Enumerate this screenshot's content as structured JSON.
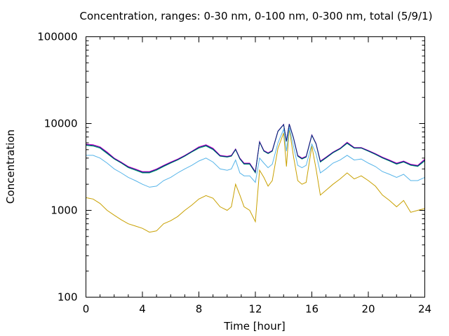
{
  "chart_data": {
    "type": "line",
    "title": "Concentration, ranges: 0-30 nm, 0-100 nm, 0-300 nm, total (5/9/1)",
    "xlabel": "Time [hour]",
    "ylabel": "Concentration",
    "xlim": [
      0,
      24
    ],
    "ylim": [
      100,
      100000
    ],
    "yscale": "log",
    "grid": false,
    "legend": "none",
    "x_ticks": [
      0,
      4,
      8,
      12,
      16,
      20,
      24
    ],
    "x_tick_labels": [
      "0",
      "4",
      "8",
      "12",
      "16",
      "20",
      "24"
    ],
    "y_ticks": [
      100,
      1000,
      10000,
      100000
    ],
    "y_tick_labels": [
      "100",
      "1000",
      "10000",
      "100000"
    ],
    "x": [
      0,
      0.5,
      1,
      1.5,
      2,
      2.5,
      3,
      3.5,
      4,
      4.5,
      5,
      5.5,
      6,
      6.5,
      7,
      7.5,
      8,
      8.5,
      9,
      9.5,
      10,
      10.3,
      10.6,
      10.9,
      11.2,
      11.6,
      12,
      12.3,
      12.6,
      12.9,
      13.2,
      13.6,
      14,
      14.2,
      14.4,
      14.7,
      15,
      15.3,
      15.6,
      16,
      16.3,
      16.6,
      17,
      17.5,
      18,
      18.5,
      19,
      19.5,
      20,
      20.5,
      21,
      21.5,
      22,
      22.5,
      23,
      23.5,
      24
    ],
    "series": [
      {
        "color": "#c8a000",
        "values": [
          1400,
          1350,
          1200,
          1000,
          880,
          780,
          700,
          660,
          620,
          560,
          580,
          700,
          760,
          850,
          1000,
          1150,
          1350,
          1480,
          1380,
          1100,
          1000,
          1100,
          2000,
          1500,
          1100,
          1000,
          740,
          2900,
          2400,
          1900,
          2200,
          5200,
          7800,
          3200,
          8800,
          4200,
          2200,
          2000,
          2100,
          5500,
          3000,
          1500,
          1700,
          2000,
          2300,
          2700,
          2300,
          2500,
          2200,
          1900,
          1500,
          1300,
          1100,
          1300,
          950,
          1000,
          1050
        ]
      },
      {
        "color": "#56b4e9",
        "values": [
          4300,
          4300,
          4000,
          3500,
          3000,
          2700,
          2400,
          2200,
          2000,
          1850,
          1900,
          2200,
          2400,
          2700,
          3000,
          3300,
          3700,
          4000,
          3600,
          3000,
          2900,
          3000,
          3800,
          2700,
          2500,
          2500,
          2100,
          4000,
          3500,
          3100,
          3400,
          6000,
          8600,
          4800,
          9000,
          5500,
          3300,
          3100,
          3300,
          5800,
          4500,
          2700,
          3000,
          3500,
          3800,
          4300,
          3800,
          3900,
          3500,
          3200,
          2800,
          2600,
          2400,
          2600,
          2200,
          2200,
          2400
        ]
      },
      {
        "color": "#009e73",
        "values": [
          5600,
          5500,
          5200,
          4500,
          3900,
          3500,
          3100,
          2900,
          2700,
          2700,
          2900,
          3200,
          3500,
          3800,
          4200,
          4700,
          5200,
          5500,
          5000,
          4200,
          4100,
          4200,
          5000,
          3900,
          3400,
          3400,
          2700,
          6100,
          4800,
          4500,
          4800,
          8100,
          9700,
          6200,
          9800,
          6800,
          4200,
          3900,
          4100,
          7300,
          5800,
          3600,
          4000,
          4600,
          5100,
          5900,
          5200,
          5200,
          4800,
          4400,
          4000,
          3700,
          3400,
          3600,
          3300,
          3200,
          3700
        ]
      },
      {
        "color": "#cc00cc",
        "values": [
          5800,
          5700,
          5400,
          4700,
          4000,
          3600,
          3200,
          3000,
          2800,
          2800,
          3000,
          3300,
          3600,
          3900,
          4300,
          4800,
          5400,
          5700,
          5200,
          4300,
          4200,
          4300,
          5100,
          4000,
          3500,
          3500,
          2800,
          6200,
          4900,
          4600,
          4900,
          8200,
          9800,
          6300,
          9900,
          6900,
          4300,
          4000,
          4200,
          7400,
          5900,
          3700,
          4100,
          4700,
          5200,
          6100,
          5300,
          5300,
          4900,
          4500,
          4100,
          3800,
          3500,
          3700,
          3400,
          3300,
          3900
        ]
      },
      {
        "color": "#00287a",
        "values": [
          5700,
          5600,
          5300,
          4600,
          3950,
          3550,
          3150,
          2950,
          2750,
          2750,
          2950,
          3250,
          3550,
          3850,
          4250,
          4750,
          5300,
          5600,
          5100,
          4250,
          4150,
          4250,
          5050,
          3950,
          3450,
          3450,
          2750,
          6150,
          4850,
          4550,
          4850,
          8150,
          9750,
          6250,
          9850,
          6850,
          4250,
          3950,
          4150,
          7350,
          5850,
          3650,
          4050,
          4650,
          5150,
          6000,
          5250,
          5250,
          4850,
          4450,
          4050,
          3750,
          3450,
          3650,
          3350,
          3250,
          3800
        ]
      }
    ]
  }
}
